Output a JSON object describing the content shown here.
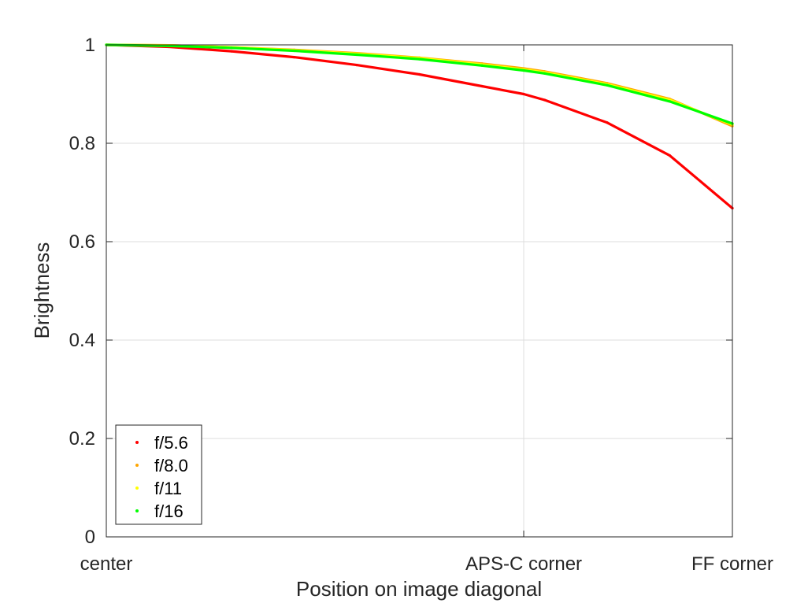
{
  "chart_data": {
    "type": "line",
    "title": "",
    "xlabel": "Position on image diagonal",
    "ylabel": "Brightness",
    "xlim": [
      0,
      1
    ],
    "ylim": [
      0,
      1
    ],
    "x_ticks": [
      {
        "value": 0,
        "label": "center"
      },
      {
        "value": 0.6667,
        "label": "APS-C corner"
      },
      {
        "value": 1,
        "label": "FF corner"
      }
    ],
    "y_ticks": [
      {
        "value": 0,
        "label": "0"
      },
      {
        "value": 0.2,
        "label": "0.2"
      },
      {
        "value": 0.4,
        "label": "0.4"
      },
      {
        "value": 0.6,
        "label": "0.6"
      },
      {
        "value": 0.8,
        "label": "0.8"
      },
      {
        "value": 1,
        "label": "1"
      }
    ],
    "grid": true,
    "legend_position": "bottom-left",
    "x": [
      0,
      0.1,
      0.2,
      0.3,
      0.4,
      0.5,
      0.6,
      0.6667,
      0.7,
      0.8,
      0.9,
      1.0
    ],
    "series": [
      {
        "name": "f/5.6",
        "color": "#ff0000",
        "values": [
          1.0,
          0.996,
          0.987,
          0.975,
          0.959,
          0.94,
          0.916,
          0.9,
          0.888,
          0.842,
          0.775,
          0.668
        ]
      },
      {
        "name": "f/8.0",
        "color": "#ffa500",
        "values": [
          1.0,
          0.999,
          0.995,
          0.99,
          0.983,
          0.974,
          0.962,
          0.952,
          0.946,
          0.922,
          0.89,
          0.835
        ]
      },
      {
        "name": "f/11",
        "color": "#ffff00",
        "values": [
          1.0,
          0.999,
          0.995,
          0.989,
          0.982,
          0.973,
          0.96,
          0.95,
          0.944,
          0.92,
          0.888,
          0.838
        ]
      },
      {
        "name": "f/16",
        "color": "#00ff00",
        "values": [
          1.0,
          0.998,
          0.994,
          0.988,
          0.98,
          0.971,
          0.958,
          0.948,
          0.942,
          0.918,
          0.885,
          0.84
        ]
      }
    ]
  }
}
